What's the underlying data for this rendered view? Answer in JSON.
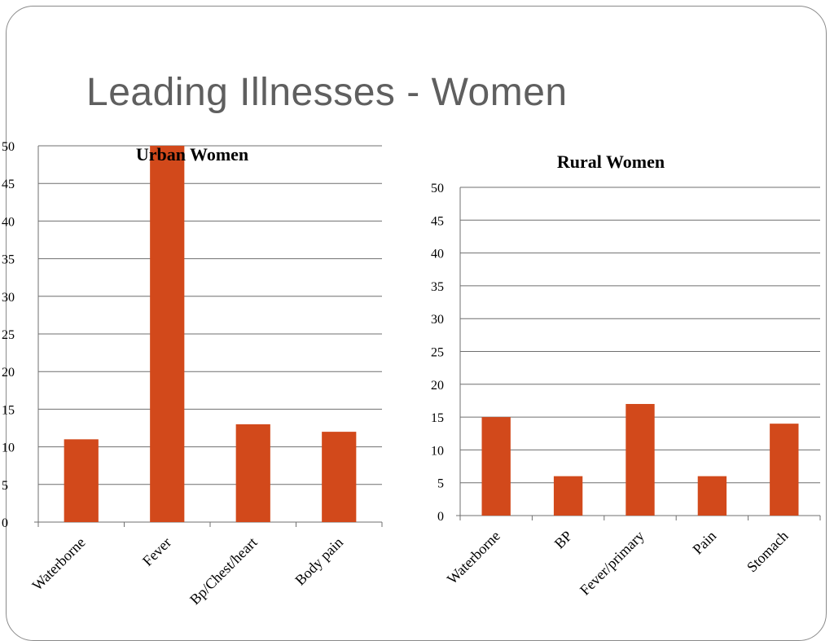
{
  "slide": {
    "title": "Leading Illnesses - Women",
    "bar_color": "#d2491b"
  },
  "chart_data": [
    {
      "type": "bar",
      "title": "Urban Women",
      "categories": [
        "Waterborne",
        "Fever",
        "Bp/Chest/heart",
        "Body pain"
      ],
      "values": [
        11,
        50,
        13,
        12
      ],
      "ylim": [
        0,
        50
      ],
      "yticks": [
        0,
        5,
        10,
        15,
        20,
        25,
        30,
        35,
        40,
        45,
        50
      ],
      "grid": true,
      "legend": "none"
    },
    {
      "type": "bar",
      "title": "Rural Women",
      "categories": [
        "Waterborne",
        "BP",
        "Fever/primary",
        "Pain",
        "Stomach"
      ],
      "values": [
        15,
        6,
        17,
        6,
        14
      ],
      "ylim": [
        0,
        50
      ],
      "yticks": [
        0,
        5,
        10,
        15,
        20,
        25,
        30,
        35,
        40,
        45,
        50
      ],
      "grid": true,
      "legend": "none"
    }
  ]
}
